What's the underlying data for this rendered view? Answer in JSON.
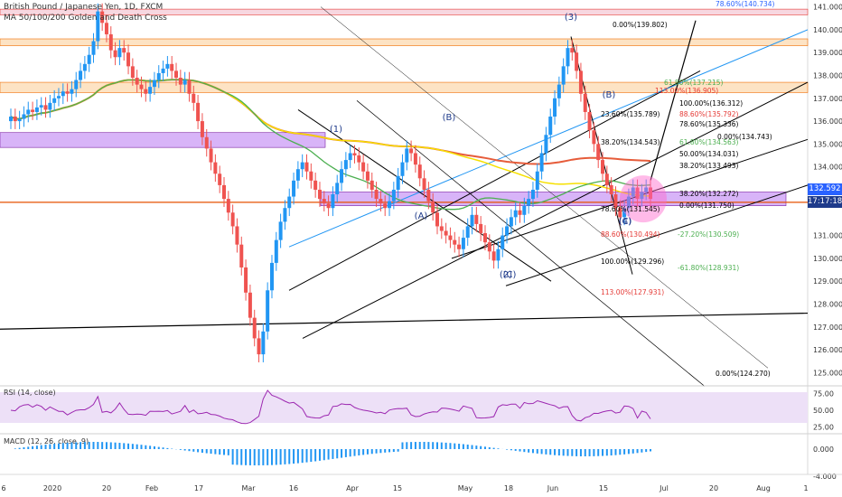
{
  "header": {
    "symbol_line": "British Pound / Japanese Yen, 1D, FXCM",
    "indicator_line": "MA 50/100/200 Golden and Death Cross"
  },
  "badges": {
    "price": "132.592",
    "countdown": "17:17:18",
    "price_color": "#2962ff",
    "countdown_color": "#1e3a8a"
  },
  "colors": {
    "up_candle": "#2196f3",
    "down_candle": "#ef5350",
    "ma50": "#4caf50",
    "ma100": "#f6e000",
    "ma200": "#e65c3a",
    "fib_box": "#d8b4f8",
    "rsi_line": "#9c27b0",
    "rsi_bg": "#ede0f7"
  },
  "chart_data": {
    "type": "candlestick",
    "y_axis_ticks": [
      "141.000",
      "140.000",
      "139.000",
      "138.000",
      "137.000",
      "136.000",
      "135.000",
      "134.000",
      "133.000",
      "131.000",
      "130.000",
      "129.000",
      "128.000",
      "127.000",
      "126.000",
      "125.000"
    ],
    "ylim": [
      124.5,
      141.3
    ],
    "x_axis_ticks": [
      "6",
      "2020",
      "20",
      "Feb",
      "17",
      "Mar",
      "16",
      "Apr",
      "15",
      "May",
      "18",
      "Jun",
      "15",
      "Jul",
      "20",
      "Aug",
      "1"
    ],
    "wave_labels": [
      "(3)",
      "(1)",
      "(B)",
      "(A)",
      "(2)",
      "(C)",
      "(4)",
      "(B)",
      "(C)"
    ],
    "fib_labels_upper": [
      {
        "text": "78.60%(140.734)",
        "color": "#2962ff"
      },
      {
        "text": "0.00%(139.802)",
        "color": "#000000"
      },
      {
        "text": "61.80%(137.215)",
        "color": "#4caf50"
      },
      {
        "text": "113.00%(136.905)",
        "color": "#e53935"
      },
      {
        "text": "100.00%(136.312)",
        "color": "#000000"
      },
      {
        "text": "23.60%(135.789)",
        "color": "#000000"
      },
      {
        "text": "88.60%(135.792)",
        "color": "#e53935"
      },
      {
        "text": "78.60%(135.336)",
        "color": "#000000"
      },
      {
        "text": "0.00%(134.743)",
        "color": "#000000"
      },
      {
        "text": "61.80%(134.563)",
        "color": "#4caf50"
      },
      {
        "text": "38.20%(134.543)",
        "color": "#000000"
      },
      {
        "text": "50.00%(134.031)",
        "color": "#000000"
      },
      {
        "text": "38.20%(133.493)",
        "color": "#000000"
      },
      {
        "text": "38.20%(132.272)",
        "color": "#000000"
      },
      {
        "text": "0.00%(131.750)",
        "color": "#000000"
      },
      {
        "text": "78.60%(131.545)",
        "color": "#000000"
      }
    ],
    "fib_labels_lower": [
      {
        "text": "-27.20%(130.509)",
        "color": "#4caf50"
      },
      {
        "text": "88.60%(130.494)",
        "color": "#e53935"
      },
      {
        "text": "100.00%(129.296)",
        "color": "#000000"
      },
      {
        "text": "-61.80%(128.931)",
        "color": "#4caf50"
      },
      {
        "text": "113.00%(127.931)",
        "color": "#e53935"
      },
      {
        "text": "0.00%(124.270)",
        "color": "#000000"
      }
    ],
    "closes": [
      136.2,
      136.0,
      136.1,
      136.3,
      136.5,
      136.4,
      136.6,
      136.7,
      136.5,
      136.8,
      137.0,
      137.1,
      137.3,
      137.2,
      137.4,
      137.8,
      138.2,
      138.5,
      138.9,
      139.5,
      140.8,
      140.3,
      139.8,
      139.1,
      138.8,
      139.2,
      139.0,
      138.4,
      137.9,
      137.6,
      137.4,
      137.2,
      137.5,
      137.8,
      138.1,
      138.3,
      138.5,
      138.2,
      137.9,
      137.6,
      137.8,
      137.2,
      136.8,
      136.0,
      135.3,
      134.8,
      134.2,
      133.7,
      133.2,
      132.6,
      132.0,
      131.4,
      130.6,
      129.6,
      128.5,
      127.4,
      126.5,
      125.8,
      126.8,
      128.6,
      129.8,
      130.8,
      131.6,
      132.2,
      132.7,
      133.4,
      133.9,
      134.2,
      133.8,
      133.4,
      133.0,
      132.6,
      132.4,
      132.2,
      132.8,
      133.3,
      133.9,
      134.3,
      134.6,
      134.5,
      134.2,
      133.8,
      133.4,
      133.0,
      132.6,
      132.4,
      132.2,
      132.5,
      133.0,
      133.6,
      134.2,
      134.8,
      134.6,
      134.1,
      133.5,
      133.0,
      132.5,
      132.0,
      131.4,
      131.2,
      131.0,
      130.8,
      130.6,
      130.4,
      130.9,
      131.4,
      131.9,
      131.5,
      131.1,
      130.7,
      130.3,
      129.9,
      130.4,
      131.0,
      131.4,
      131.8,
      132.1,
      131.9,
      132.3,
      132.6,
      133.0,
      133.8,
      134.6,
      135.4,
      136.2,
      137.0,
      137.6,
      138.4,
      139.2,
      139.0,
      138.2,
      137.2,
      136.4,
      135.6,
      135.0,
      134.3,
      133.7,
      133.2,
      132.8,
      132.2,
      131.8,
      132.2,
      132.7,
      133.1,
      132.6,
      132.9,
      133.1,
      132.6
    ],
    "rsi": {
      "label": "RSI (14, close)",
      "ticks": [
        "75.00",
        "50.00",
        "25.00"
      ],
      "ylim": [
        15,
        85
      ]
    },
    "macd": {
      "label": "MACD (12, 26, close, 9)",
      "ticks": [
        "0.000",
        "-4.000"
      ]
    }
  }
}
